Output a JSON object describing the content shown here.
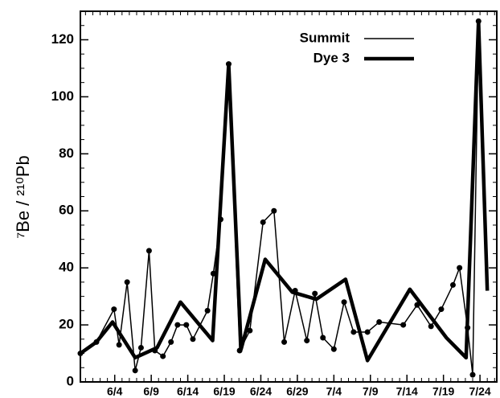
{
  "chart_data": {
    "type": "line",
    "ylabel": "⁷Be / ²¹⁰Pb",
    "xlim": [
      -0.7,
      56.3
    ],
    "xticks": [
      {
        "value": 4,
        "label": "6/4"
      },
      {
        "value": 9,
        "label": "6/9"
      },
      {
        "value": 14,
        "label": "6/14"
      },
      {
        "value": 19,
        "label": "6/19"
      },
      {
        "value": 24,
        "label": "6/24"
      },
      {
        "value": 29,
        "label": "6/29"
      },
      {
        "value": 34,
        "label": "7/4"
      },
      {
        "value": 39,
        "label": "7/9"
      },
      {
        "value": 44,
        "label": "7/14"
      },
      {
        "value": 49,
        "label": "7/19"
      },
      {
        "value": 54,
        "label": "7/24"
      }
    ],
    "ylim": [
      0,
      130
    ],
    "yticks": [
      0,
      20,
      40,
      60,
      80,
      100,
      120
    ],
    "legend": "top-right",
    "series": [
      {
        "name": "Summit",
        "color": "#000000",
        "width": 1.5,
        "markers": true,
        "x": [
          -0.7,
          1.5,
          3.9,
          4.6,
          5.7,
          6.8,
          7.6,
          8.7,
          9.5,
          10.6,
          11.7,
          12.6,
          13.8,
          14.7,
          16.7,
          17.5,
          18.5,
          19.6,
          21.1,
          22.5,
          24.3,
          25.8,
          27.2,
          28.7,
          30.3,
          31.4,
          32.5,
          34.0,
          35.4,
          36.7,
          38.6,
          40.2,
          43.5,
          45.4,
          47.3,
          48.7,
          50.3,
          51.2,
          52.3,
          53.0,
          53.8
        ],
        "values": [
          10,
          14,
          25.5,
          13,
          35,
          4,
          12,
          46,
          11,
          9,
          14,
          20,
          20,
          15,
          25,
          38,
          57,
          111.5,
          11,
          18,
          56,
          60,
          14,
          32,
          14.5,
          31,
          15.5,
          11.5,
          28,
          17.5,
          17.5,
          21,
          20,
          27,
          19.5,
          25.5,
          34,
          40,
          19,
          2.5,
          126.5
        ]
      },
      {
        "name": "Dye 3",
        "color": "#000000",
        "width": 4.5,
        "markers": false,
        "x": [
          -0.7,
          1.5,
          3.7,
          6.8,
          9.8,
          13.0,
          17.4,
          19.6,
          21.3,
          24.6,
          28.3,
          31.6,
          35.6,
          38.6,
          44.4,
          49.4,
          52.1,
          53.8,
          55.0
        ],
        "values": [
          10,
          14,
          21,
          8.5,
          12,
          28,
          14.5,
          111.5,
          11.5,
          43,
          31.5,
          29,
          36,
          7.5,
          32.5,
          15.5,
          8.5,
          126.5,
          32
        ]
      }
    ]
  }
}
